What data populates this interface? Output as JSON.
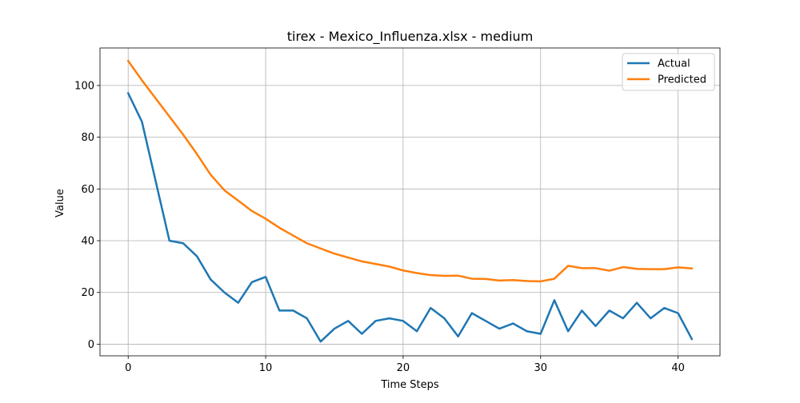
{
  "chart_data": {
    "type": "line",
    "title": "tirex - Mexico_Influenza.xlsx - medium",
    "xlabel": "Time Steps",
    "ylabel": "Value",
    "xlim": [
      -2.05,
      43.05
    ],
    "ylim": [
      -4.5,
      114.5
    ],
    "xticks": [
      0,
      10,
      20,
      30,
      40
    ],
    "yticks": [
      0,
      20,
      40,
      60,
      80,
      100
    ],
    "grid": true,
    "legend_position": "top-right",
    "x": [
      0,
      1,
      2,
      3,
      4,
      5,
      6,
      7,
      8,
      9,
      10,
      11,
      12,
      13,
      14,
      15,
      16,
      17,
      18,
      19,
      20,
      21,
      22,
      23,
      24,
      25,
      26,
      27,
      28,
      29,
      30,
      31,
      32,
      33,
      34,
      35,
      36,
      37,
      38,
      39,
      40,
      41
    ],
    "series": [
      {
        "name": "Actual",
        "color": "#1f77b4",
        "values": [
          97,
          86,
          63,
          40,
          39,
          34,
          25,
          20,
          16,
          24,
          26,
          13,
          13,
          10,
          1,
          6,
          9,
          4,
          9,
          10,
          9,
          5,
          14,
          10,
          3,
          12,
          9,
          6,
          8,
          5,
          4,
          17,
          5,
          13,
          7,
          13,
          10,
          16,
          10,
          14,
          12,
          2
        ]
      },
      {
        "name": "Predicted",
        "color": "#ff7f0e",
        "values": [
          109.5,
          102,
          95,
          88,
          81,
          73.5,
          65.5,
          59.5,
          55.5,
          51.5,
          48.5,
          45,
          42,
          39,
          37,
          35,
          33.5,
          32,
          31,
          30,
          28.5,
          27.5,
          26.7,
          26.4,
          26.5,
          25.3,
          25.2,
          24.6,
          24.8,
          24.4,
          24.3,
          25.3,
          30.3,
          29.4,
          29.4,
          28.4,
          29.8,
          29.1,
          29.0,
          29.0,
          29.7,
          29.3
        ]
      }
    ]
  }
}
